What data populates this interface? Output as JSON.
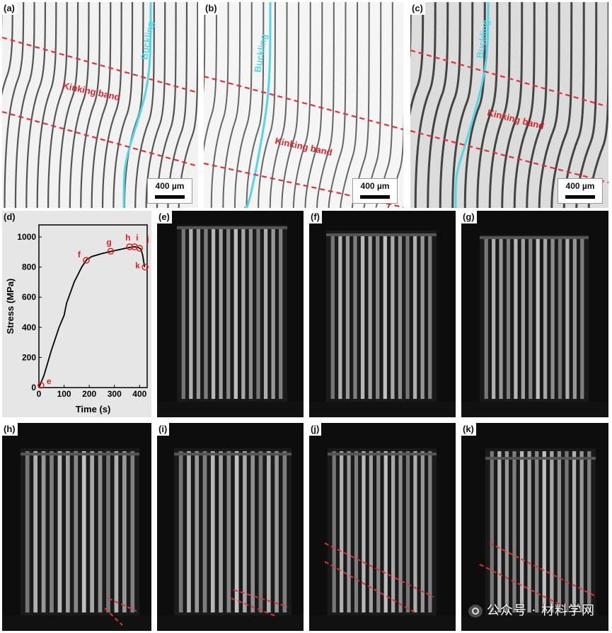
{
  "panels": {
    "a": {
      "label": "(a)",
      "annotations": [
        "Buckling",
        "Kinking band"
      ],
      "scale_bar": "400 µm"
    },
    "b": {
      "label": "(b)",
      "annotations": [
        "Buckling",
        "Kinking band"
      ],
      "scale_bar": "400 µm"
    },
    "c": {
      "label": "(c)",
      "annotations": [
        "Buckling",
        "Kinking band"
      ],
      "scale_bar": "400 µm"
    },
    "d": {
      "label": "(d)"
    },
    "e": {
      "label": "(e)"
    },
    "f": {
      "label": "(f)"
    },
    "g": {
      "label": "(g)"
    },
    "h": {
      "label": "(h)"
    },
    "i": {
      "label": "(i)"
    },
    "j": {
      "label": "(j)"
    },
    "k": {
      "label": "(k)"
    }
  },
  "chart_data": {
    "type": "line",
    "xlabel": "Time (s)",
    "ylabel": "Stress (MPa)",
    "xlim": [
      0,
      430
    ],
    "ylim": [
      0,
      1080
    ],
    "xticks": [
      0,
      100,
      200,
      300,
      400
    ],
    "yticks": [
      0,
      200,
      400,
      600,
      800,
      1000
    ],
    "grid": false,
    "series": [
      {
        "x": [
          0,
          20,
          50,
          80,
          100,
          110,
          140,
          170,
          190,
          210,
          250,
          290,
          330,
          360,
          380,
          395,
          405,
          412,
          420
        ],
        "y": [
          0,
          80,
          250,
          400,
          480,
          560,
          700,
          800,
          850,
          870,
          890,
          905,
          920,
          930,
          935,
          930,
          920,
          880,
          800
        ]
      }
    ],
    "markers": [
      {
        "label": "e",
        "x": 8,
        "y": 15
      },
      {
        "label": "f",
        "x": 188,
        "y": 845
      },
      {
        "label": "g",
        "x": 285,
        "y": 905
      },
      {
        "label": "h",
        "x": 360,
        "y": 935
      },
      {
        "label": "i",
        "x": 380,
        "y": 935
      },
      {
        "label": "j",
        "x": 400,
        "y": 925
      },
      {
        "label": "k",
        "x": 422,
        "y": 800
      }
    ],
    "marker_color": "#e02020"
  },
  "watermark": {
    "text": "公众号 · 材料学网"
  },
  "colors": {
    "kink_line": "#e0303a",
    "buckle_line": "#55d6e6",
    "label_red": "#d8252c"
  }
}
